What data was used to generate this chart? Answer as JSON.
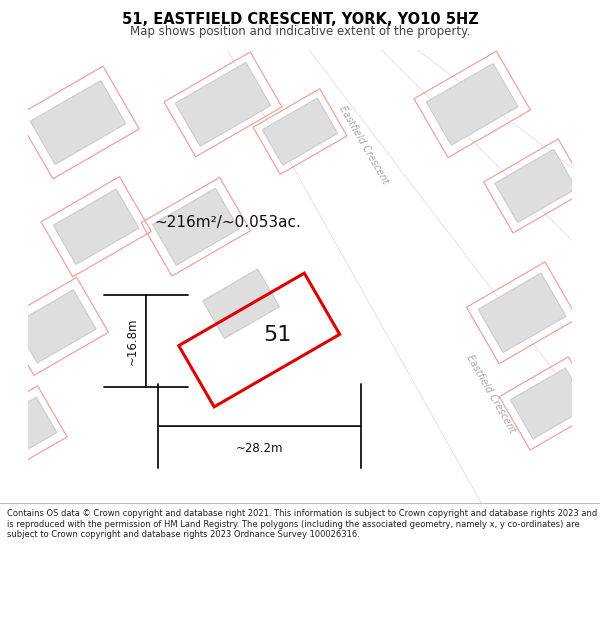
{
  "title": "51, EASTFIELD CRESCENT, YORK, YO10 5HZ",
  "subtitle": "Map shows position and indicative extent of the property.",
  "area_text": "~216m²/~0.053ac.",
  "width_label": "~28.2m",
  "height_label": "~16.8m",
  "property_number": "51",
  "copyright_text": "Contains OS data © Crown copyright and database right 2021. This information is subject to Crown copyright and database rights 2023 and is reproduced with the permission of HM Land Registry. The polygons (including the associated geometry, namely x, y co-ordinates) are subject to Crown copyright and database rights 2023 Ordnance Survey 100026316.",
  "bg_color": "#f2f2f2",
  "road_color": "#ffffff",
  "building_fill": "#dedede",
  "building_edge": "#cccccc",
  "pink_color": "#f4a0a0",
  "red_color": "#dd0000",
  "street_color": "#aaaaaa",
  "dim_color": "#111111",
  "title_color": "#000000",
  "subtitle_color": "#444444",
  "footer_color": "#222222"
}
